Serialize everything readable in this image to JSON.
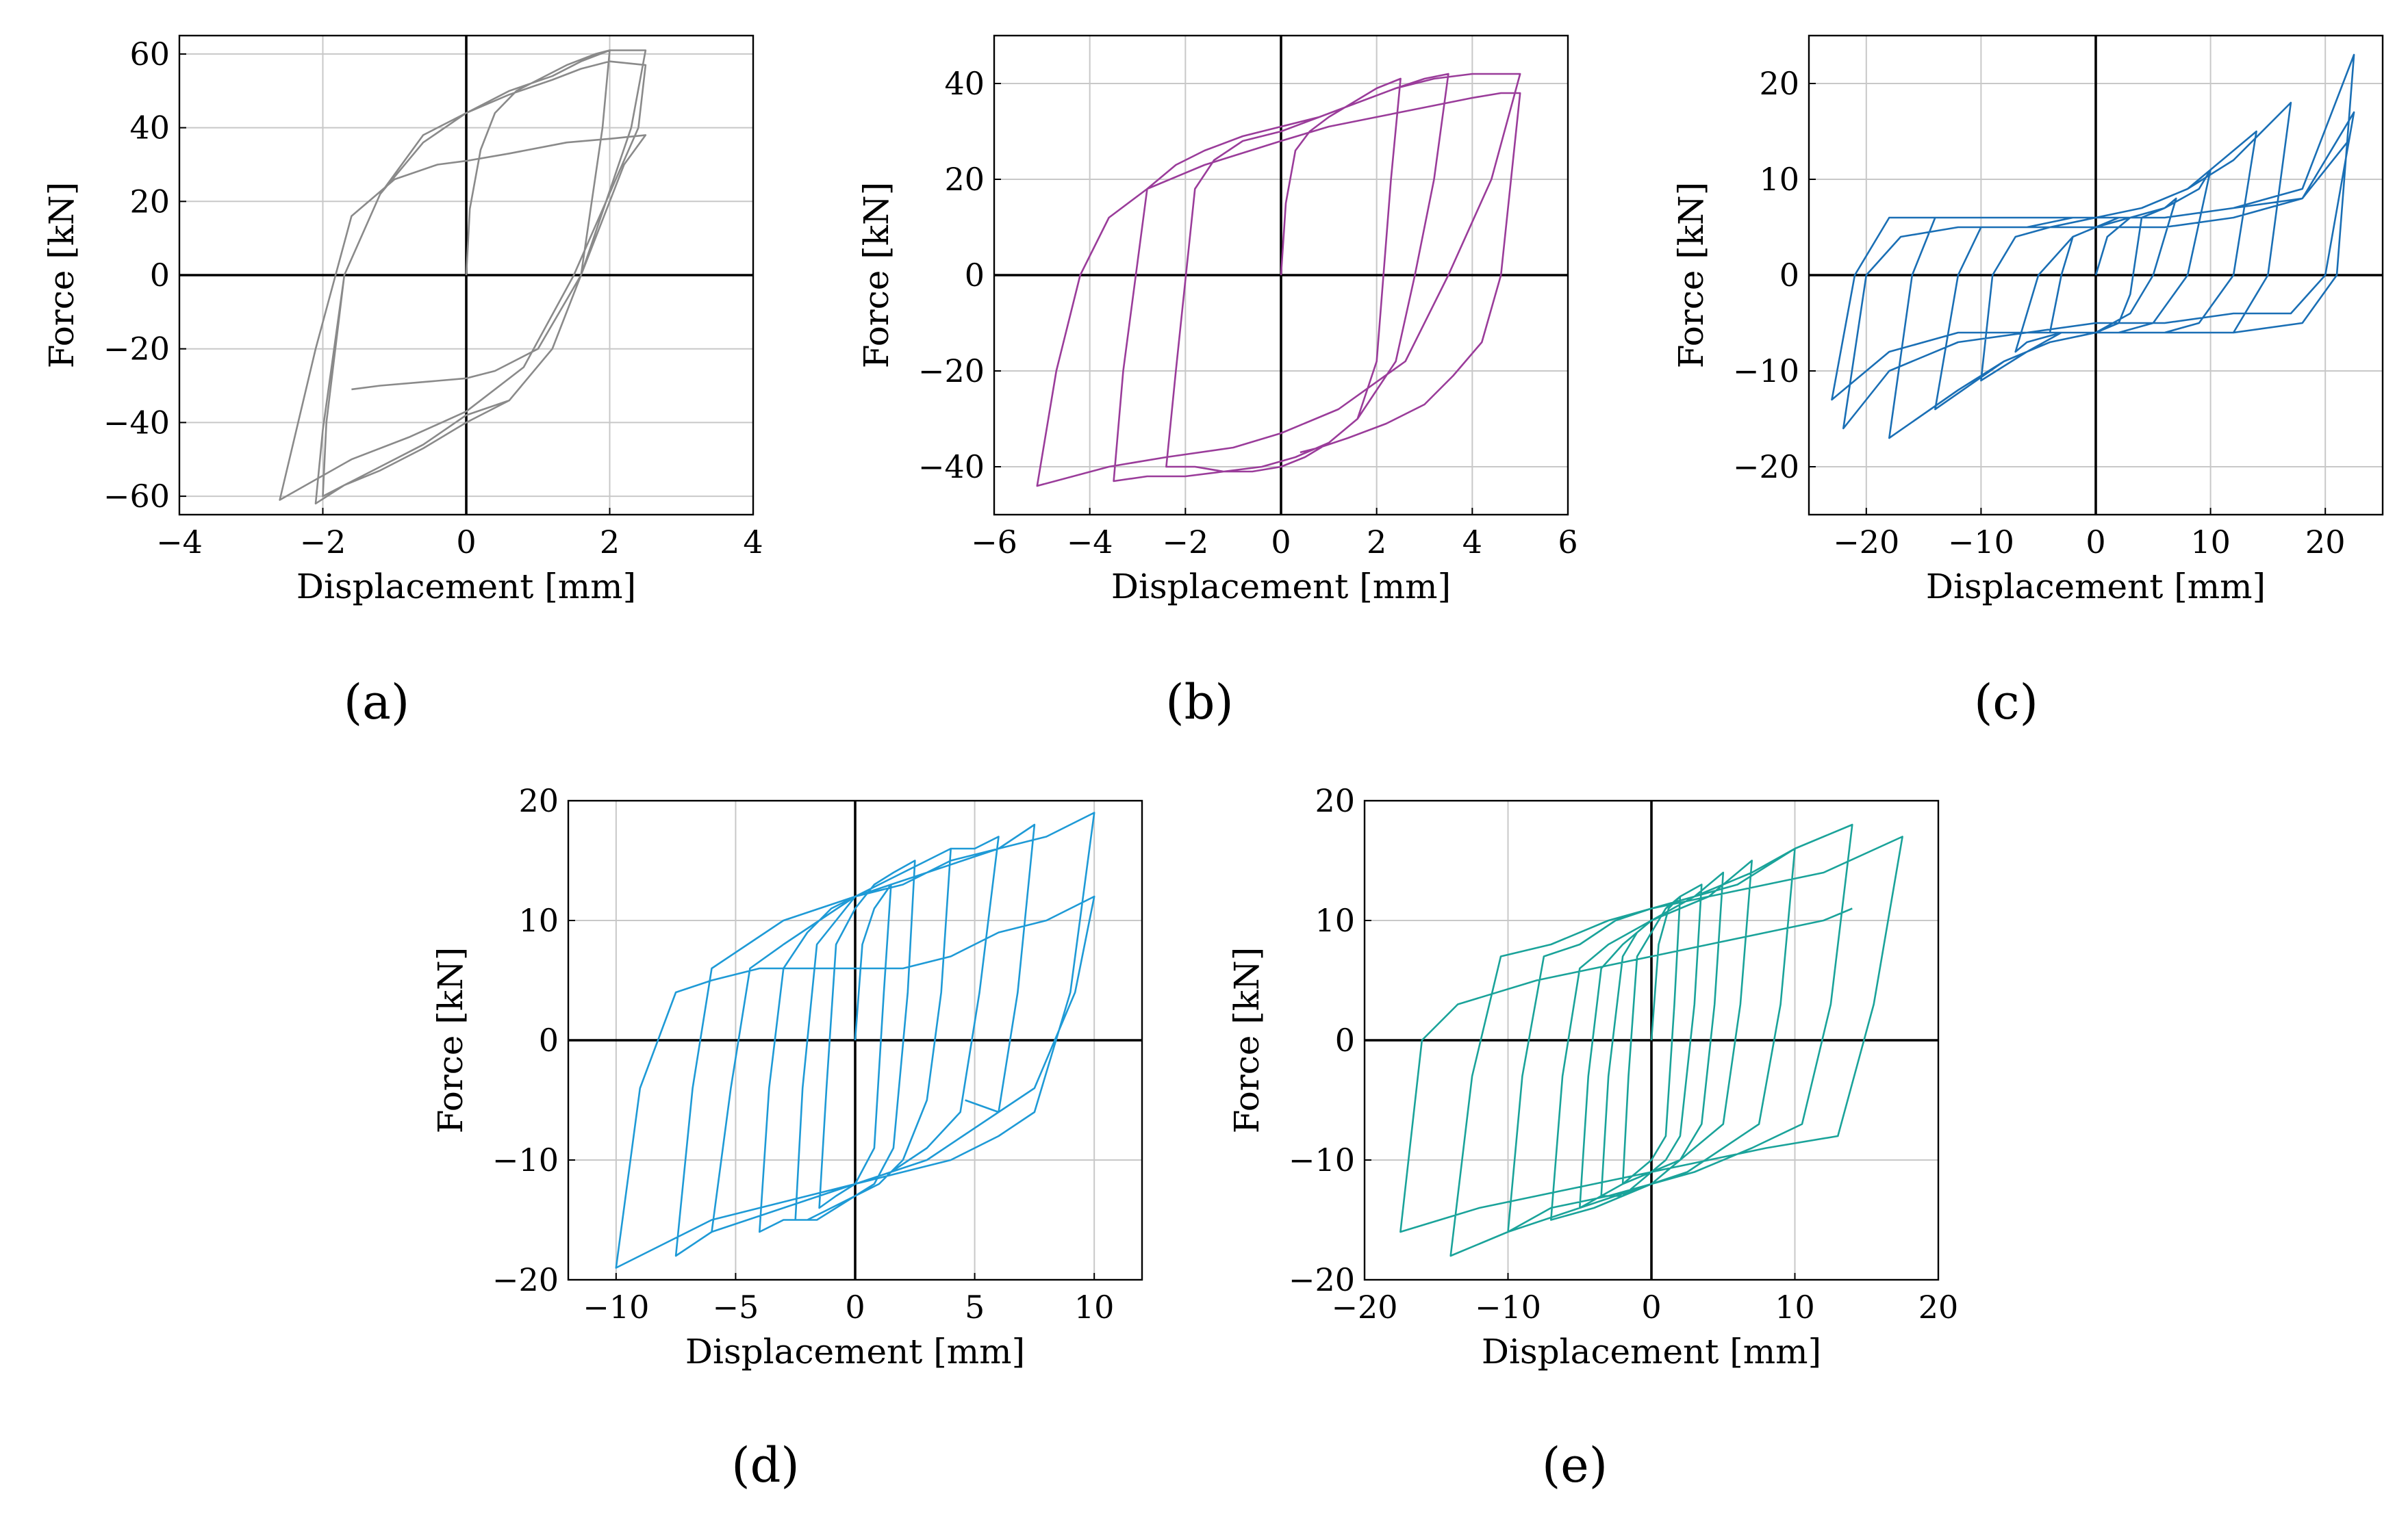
{
  "chart_data": [
    {
      "type": "line",
      "caption": "(a)",
      "xlabel": "Displacement [mm]",
      "ylabel": "Force [kN]",
      "xlim": [
        -4,
        4
      ],
      "ylim": [
        -65,
        65
      ],
      "xticks": [
        -4,
        -2,
        0,
        2,
        4
      ],
      "yticks": [
        -60,
        -40,
        -20,
        0,
        20,
        40,
        60
      ],
      "grid": true,
      "color": "#8a8a8a",
      "series": [
        {
          "x": [
            0,
            0.05,
            0.2,
            0.4,
            0.7,
            1.0,
            1.4,
            1.8,
            2.0,
            1.9,
            1.6,
            1.2,
            0.6,
            0,
            -0.6,
            -1.2,
            -1.6,
            -2.0,
            -1.95,
            -1.7,
            -1.2,
            -0.6,
            0,
            0.6,
            1.2,
            1.6,
            2.0,
            2.5,
            2.3,
            1.6,
            1.2,
            0.6,
            0,
            -0.6,
            -1.2,
            -1.7,
            -2.1,
            -2.0,
            -1.7,
            -1.2,
            -0.6,
            0,
            0.6,
            1.2,
            1.6,
            2.0,
            2.5,
            2.4,
            1.5,
            0.8,
            0,
            -0.8,
            -1.6,
            -2.6,
            -2.1,
            -1.6,
            -1,
            -0.4,
            0,
            0.6,
            1.4,
            2.0,
            2.5,
            2.2,
            1.6,
            1.0,
            0.4,
            0,
            -0.6,
            -1.2,
            -1.6
          ],
          "y": [
            0,
            18,
            34,
            44,
            50,
            53,
            57,
            60,
            61,
            40,
            0,
            -20,
            -34,
            -38,
            -46,
            -52,
            -56,
            -60,
            -40,
            0,
            22,
            38,
            44,
            50,
            54,
            58,
            61,
            61,
            40,
            0,
            -20,
            -34,
            -40,
            -47,
            -53,
            -57,
            -62,
            -42,
            0,
            22,
            36,
            44,
            49,
            53,
            56,
            58,
            57,
            40,
            0,
            -25,
            -37,
            -44,
            -50,
            -61,
            -20,
            16,
            26,
            30,
            31,
            33,
            36,
            37,
            38,
            30,
            0,
            -20,
            -26,
            -28,
            -29,
            -30,
            -31
          ]
        }
      ]
    },
    {
      "type": "line",
      "caption": "(b)",
      "xlabel": "Displacement [mm]",
      "ylabel": "Force [kN]",
      "xlim": [
        -6,
        6
      ],
      "ylim": [
        -50,
        50
      ],
      "xticks": [
        -6,
        -4,
        -2,
        0,
        2,
        4,
        6
      ],
      "yticks": [
        -40,
        -20,
        0,
        20,
        40
      ],
      "grid": true,
      "color": "#9a3c9a",
      "series": [
        {
          "x": [
            0,
            0.1,
            0.3,
            0.6,
            1.0,
            1.5,
            2.0,
            2.5,
            2.3,
            2.0,
            1.6,
            1.0,
            0.5,
            0,
            -0.6,
            -1.2,
            -1.8,
            -2.4,
            -2.2,
            -1.8,
            -1.4,
            -0.8,
            0,
            0.8,
            1.6,
            2.4,
            3.0,
            3.5,
            3.2,
            2.8,
            2.4,
            1.6,
            1.0,
            0.3,
            -0.4,
            -1.2,
            -2.0,
            -2.8,
            -3.5,
            -3.3,
            -2.8,
            -2.2,
            -1.6,
            -0.8,
            0,
            0.8,
            1.6,
            2.4,
            3.2,
            4.0,
            5.0,
            4.4,
            3.5,
            2.6,
            1.2,
            0,
            -1,
            -2.4,
            -3.6,
            -5.1,
            -4.7,
            -4.2,
            -3.6,
            -2.8,
            -1.6,
            0,
            1,
            2,
            3,
            4,
            4.6,
            5.0,
            4.6,
            4.2,
            3.6,
            3.0,
            2.2,
            1.4,
            0.8,
            0.4
          ],
          "y": [
            0,
            15,
            26,
            30,
            33,
            36,
            39,
            41,
            20,
            -18,
            -30,
            -35,
            -38,
            -40,
            -41,
            -41,
            -40,
            -40,
            -20,
            18,
            24,
            28,
            30,
            33,
            36,
            39,
            41,
            42,
            20,
            0,
            -18,
            -30,
            -35,
            -38,
            -40,
            -41,
            -42,
            -42,
            -43,
            -20,
            18,
            23,
            26,
            29,
            31,
            33,
            36,
            39,
            41,
            42,
            42,
            20,
            0,
            -18,
            -28,
            -33,
            -36,
            -38,
            -40,
            -44,
            -20,
            0,
            12,
            18,
            23,
            28,
            31,
            33,
            35,
            37,
            38,
            38,
            0,
            -14,
            -21,
            -27,
            -31,
            -34,
            -36,
            -37
          ]
        }
      ]
    },
    {
      "type": "line",
      "caption": "(c)",
      "xlabel": "Displacement [mm]",
      "ylabel": "Force [kN]",
      "xlim": [
        -25,
        25
      ],
      "ylim": [
        -25,
        25
      ],
      "xticks": [
        -20,
        -10,
        0,
        10,
        20
      ],
      "yticks": [
        -20,
        -10,
        0,
        10,
        20
      ],
      "grid": true,
      "color": "#1a6fb5",
      "series": [
        {
          "x": [
            0,
            1,
            2,
            3,
            4,
            3,
            2,
            0,
            -2,
            -4,
            -3,
            -2,
            0,
            2,
            4,
            6,
            7,
            5,
            3,
            0,
            -3,
            -6,
            -7,
            -5,
            -2,
            0,
            3,
            6,
            9,
            10,
            8,
            5,
            2,
            0,
            -3,
            -6,
            -10,
            -9,
            -7,
            -4,
            0,
            4,
            8,
            11,
            14,
            12,
            9,
            6,
            2,
            0,
            -4,
            -8,
            -14,
            -12,
            -10,
            -6,
            -2,
            0,
            4,
            8,
            12,
            17,
            15,
            12,
            8,
            4,
            0,
            -4,
            -8,
            -12,
            -18,
            -16,
            -14,
            -10,
            -4,
            0,
            6,
            12,
            18,
            22.5,
            21,
            18,
            12,
            6,
            0,
            -6,
            -12,
            -18,
            -23,
            -21,
            -18,
            -12,
            -6,
            0,
            6,
            12,
            18,
            22.5,
            20,
            17,
            12,
            6,
            0,
            -6,
            -12,
            -18,
            -22,
            -20,
            -17,
            -12,
            -6,
            0,
            6,
            12,
            18,
            22
          ],
          "y": [
            0,
            4,
            5,
            6,
            6,
            -2,
            -5,
            -6,
            -6,
            -6,
            0,
            4,
            5,
            6,
            6,
            7,
            8,
            0,
            -4,
            -6,
            -6,
            -7,
            -8,
            0,
            4,
            5,
            6,
            7,
            9,
            11,
            0,
            -5,
            -6,
            -6,
            -6,
            -8,
            -11,
            0,
            4,
            5,
            6,
            7,
            9,
            12,
            15,
            0,
            -5,
            -6,
            -6,
            -6,
            -7,
            -9,
            -14,
            0,
            5,
            5,
            6,
            6,
            7,
            9,
            12,
            18,
            0,
            -6,
            -6,
            -6,
            -6,
            -7,
            -9,
            -12,
            -17,
            0,
            6,
            6,
            6,
            6,
            6,
            7,
            9,
            23,
            0,
            -5,
            -6,
            -6,
            -6,
            -6,
            -6,
            -8,
            -13,
            0,
            6,
            6,
            6,
            6,
            6,
            7,
            8,
            17,
            0,
            -4,
            -4,
            -5,
            -5,
            -6,
            -7,
            -10,
            -16,
            0,
            4,
            5,
            5,
            5,
            5,
            6,
            8,
            14
          ]
        }
      ]
    },
    {
      "type": "line",
      "caption": "(d)",
      "xlabel": "Displacement [mm]",
      "ylabel": "Force [kN]",
      "xlim": [
        -12,
        12
      ],
      "ylim": [
        -20,
        20
      ],
      "xticks": [
        -10,
        -5,
        0,
        5,
        10
      ],
      "yticks": [
        -20,
        -10,
        0,
        10,
        20
      ],
      "grid": true,
      "color": "#1e9ad6",
      "series": [
        {
          "x": [
            0,
            0.3,
            0.8,
            1.5,
            1.2,
            0.8,
            0,
            -0.8,
            -1.5,
            -1.2,
            -0.8,
            0,
            0.8,
            1.6,
            2.5,
            2.2,
            1.6,
            0.8,
            0,
            -0.8,
            -1.6,
            -2.5,
            -2.2,
            -1.6,
            -0.8,
            0,
            1,
            2,
            3,
            4,
            3.6,
            3,
            2,
            1,
            0,
            -1,
            -2,
            -3,
            -4,
            -3.6,
            -3,
            -2,
            -1,
            0,
            1,
            2,
            3,
            4,
            5,
            6,
            5.2,
            4.4,
            3,
            1.5,
            0,
            -1.5,
            -3,
            -4.5,
            -6,
            -5.2,
            -4.4,
            -3,
            -1.5,
            0,
            1.5,
            3,
            4.5,
            6,
            7.5,
            6.8,
            6,
            4.5,
            3,
            1.5,
            0,
            -1.5,
            -3,
            -4.5,
            -6,
            -7.5,
            -6.8,
            -6,
            -4.5,
            -3,
            -1.5,
            0,
            2,
            4,
            6,
            8,
            10,
            9,
            7.5,
            6,
            4,
            2,
            0,
            -2,
            -4,
            -6,
            -8,
            -10,
            -9,
            -7.5,
            -6,
            -4,
            -2,
            0,
            2,
            4,
            6,
            8,
            10,
            9.2,
            7.5,
            6,
            4.6
          ],
          "y": [
            0,
            8,
            11,
            13,
            4,
            -9,
            -12,
            -13,
            -14,
            -4,
            8,
            11,
            13,
            14,
            15,
            4,
            -9,
            -12,
            -13,
            -14,
            -15,
            -15,
            -4,
            8,
            10,
            12,
            13,
            14,
            15,
            16,
            4,
            -5,
            -10,
            -12,
            -13,
            -14,
            -15,
            -15,
            -16,
            -4,
            6,
            9,
            11,
            12,
            13,
            14,
            15,
            16,
            16,
            17,
            4,
            -6,
            -9,
            -11,
            -12,
            -13,
            -14,
            -15,
            -16,
            -4,
            6,
            8,
            10,
            12,
            13,
            14,
            15,
            16,
            18,
            4,
            -6,
            -8,
            -10,
            -11,
            -12,
            -13,
            -14,
            -15,
            -16,
            -18,
            -4,
            6,
            8,
            10,
            11,
            12,
            13,
            15,
            16,
            17,
            19,
            4,
            -6,
            -8,
            -10,
            -11,
            -12,
            -13,
            -14,
            -15,
            -17,
            -19,
            -4,
            4,
            5,
            6,
            6,
            6,
            6,
            7,
            9,
            10,
            12,
            4,
            -4,
            -6,
            -5
          ]
        }
      ]
    },
    {
      "type": "line",
      "caption": "(e)",
      "xlabel": "Displacement [mm]",
      "ylabel": "Force [kN]",
      "xlim": [
        -20,
        20
      ],
      "ylim": [
        -20,
        20
      ],
      "xticks": [
        -20,
        -10,
        0,
        10,
        20
      ],
      "yticks": [
        -20,
        -10,
        0,
        10,
        20
      ],
      "grid": true,
      "color": "#1aa39a",
      "series": [
        {
          "x": [
            0,
            0.5,
            1.2,
            2,
            1.6,
            1,
            0,
            -1,
            -2,
            -1.6,
            -1,
            0,
            1,
            2,
            3.5,
            3,
            2,
            1,
            0,
            -1,
            -2,
            -3.5,
            -3,
            -2,
            -1,
            0,
            1.5,
            3,
            5,
            4.4,
            3.5,
            2,
            0,
            -2,
            -3.5,
            -5,
            -4.4,
            -3.5,
            -2,
            0,
            2,
            4,
            7,
            6.2,
            5,
            3,
            1,
            0,
            -2,
            -4,
            -7,
            -6.2,
            -5,
            -3,
            0,
            3,
            6,
            10,
            9,
            7.5,
            5,
            2.5,
            0,
            -2.5,
            -5,
            -10,
            -9,
            -7.5,
            -5,
            -2.5,
            0,
            3,
            7,
            10,
            14,
            12.5,
            10.5,
            7,
            3,
            0,
            -3,
            -7,
            -10,
            -14,
            -12.5,
            -10.5,
            -7,
            -3,
            0,
            4,
            8,
            12,
            17.5,
            15.5,
            13,
            8,
            4,
            0,
            -4,
            -8,
            -12,
            -17.5,
            -16,
            -13.5,
            -8,
            -4,
            0,
            4,
            8,
            12,
            14
          ],
          "y": [
            0,
            8,
            11,
            12,
            3,
            -8,
            -10,
            -11,
            -12,
            -3,
            7,
            9,
            11,
            12,
            13,
            3,
            -8,
            -10,
            -11,
            -12,
            -13,
            -13,
            -3,
            7,
            9,
            10,
            11,
            12,
            14,
            3,
            -7,
            -10,
            -11,
            -12,
            -13,
            -14,
            -3,
            6,
            8,
            10,
            11,
            12,
            15,
            3,
            -7,
            -9,
            -11,
            -12,
            -13,
            -14,
            -15,
            -3,
            6,
            8,
            10,
            12,
            13,
            16,
            3,
            -7,
            -9,
            -11,
            -12,
            -13,
            -14,
            -16,
            -3,
            7,
            8,
            10,
            11,
            12,
            14,
            16,
            18,
            3,
            -7,
            -9,
            -11,
            -12,
            -13,
            -14,
            -16,
            -18,
            -3,
            7,
            8,
            10,
            11,
            12,
            13,
            14,
            17,
            3,
            -8,
            -9,
            -10,
            -11,
            -12,
            -13,
            -14,
            -16,
            0,
            3,
            5,
            6,
            7,
            8,
            9,
            10,
            11
          ]
        }
      ]
    }
  ]
}
